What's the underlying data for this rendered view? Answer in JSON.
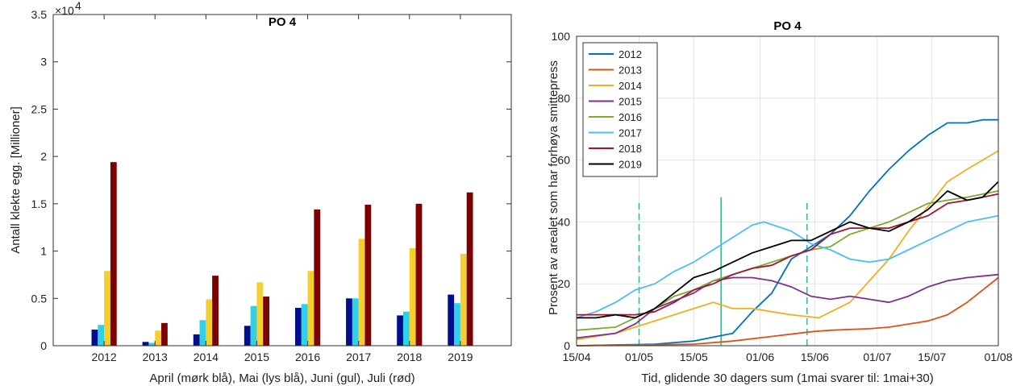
{
  "chart_data": [
    {
      "type": "bar",
      "title": "PO 4",
      "ylabel": "Antall klekte egg. [Millioner]",
      "xlabel": "April (mørk blå), Mai (lys blå), Juni (gul), Juli (rød)",
      "exponent_label": "×10",
      "exponent_power": "4",
      "ylim": [
        0,
        35000
      ],
      "yticks": [
        "0",
        "0.5",
        "1",
        "1.5",
        "2",
        "2.5",
        "3",
        "3.5"
      ],
      "categories": [
        "2012",
        "2013",
        "2014",
        "2015",
        "2016",
        "2017",
        "2018",
        "2019"
      ],
      "series": [
        {
          "color": "#000e8c",
          "values": [
            1700,
            400,
            1200,
            2100,
            4000,
            5000,
            3200,
            5400
          ]
        },
        {
          "color": "#2fd0e8",
          "values": [
            2200,
            300,
            2700,
            4200,
            4400,
            5000,
            3600,
            4500
          ]
        },
        {
          "color": "#f5cf2d",
          "values": [
            7900,
            1600,
            4900,
            6700,
            7900,
            11300,
            10300,
            9700
          ]
        },
        {
          "color": "#7d0000",
          "values": [
            19400,
            2400,
            7400,
            5200,
            14400,
            14900,
            15000,
            16200
          ]
        }
      ]
    },
    {
      "type": "line",
      "title": "PO 4",
      "ylabel": "Prosent av arealet som har forhøya smittepress",
      "xlabel": "Tid, glidende 30 dagers sum (1mai svarer til: 1mai+30)",
      "xticks": [
        "15/04",
        "01/05",
        "15/05",
        "01/06",
        "15/06",
        "01/07",
        "15/07",
        "01/08"
      ],
      "xlim": [
        0,
        108
      ],
      "yticks": [
        "0",
        "20",
        "40",
        "60",
        "80",
        "100"
      ],
      "ylim": [
        0,
        100
      ],
      "grid": true,
      "legend": "top-left",
      "vlines": [
        {
          "day": 16,
          "ymax": 47,
          "style": "dashed"
        },
        {
          "day": 37,
          "ymax": 48,
          "style": "solid"
        },
        {
          "day": 59,
          "ymax": 47,
          "style": "dashed"
        }
      ],
      "series": [
        {
          "name": "2012",
          "color": "#0072bd",
          "points": [
            [
              0,
              0
            ],
            [
              20,
              0.5
            ],
            [
              30,
              1.5
            ],
            [
              40,
              4
            ],
            [
              45,
              11
            ],
            [
              50,
              17
            ],
            [
              55,
              28
            ],
            [
              60,
              32
            ],
            [
              65,
              36
            ],
            [
              70,
              42
            ],
            [
              75,
              50
            ],
            [
              80,
              57
            ],
            [
              85,
              63
            ],
            [
              90,
              68
            ],
            [
              95,
              72
            ],
            [
              100,
              72
            ],
            [
              104,
              73
            ],
            [
              108,
              73
            ]
          ]
        },
        {
          "name": "2013",
          "color": "#d95319",
          "points": [
            [
              0,
              0
            ],
            [
              30,
              0.5
            ],
            [
              40,
              1.5
            ],
            [
              50,
              3
            ],
            [
              60,
              4.5
            ],
            [
              65,
              5
            ],
            [
              75,
              5.5
            ],
            [
              80,
              6
            ],
            [
              90,
              8
            ],
            [
              95,
              10
            ],
            [
              100,
              14
            ],
            [
              104,
              18
            ],
            [
              108,
              22
            ]
          ]
        },
        {
          "name": "2014",
          "color": "#edb120",
          "points": [
            [
              0,
              2
            ],
            [
              10,
              4
            ],
            [
              15,
              6
            ],
            [
              25,
              10
            ],
            [
              30,
              12
            ],
            [
              35,
              14
            ],
            [
              40,
              12
            ],
            [
              45,
              12
            ],
            [
              50,
              11
            ],
            [
              55,
              10
            ],
            [
              62,
              9
            ],
            [
              70,
              14
            ],
            [
              75,
              21
            ],
            [
              80,
              28
            ],
            [
              85,
              37
            ],
            [
              90,
              45
            ],
            [
              95,
              53
            ],
            [
              100,
              57
            ],
            [
              108,
              63
            ]
          ]
        },
        {
          "name": "2015",
          "color": "#7e2f8e",
          "points": [
            [
              0,
              2.5
            ],
            [
              10,
              4
            ],
            [
              15,
              7
            ],
            [
              20,
              12
            ],
            [
              30,
              17
            ],
            [
              35,
              21
            ],
            [
              40,
              22
            ],
            [
              45,
              22
            ],
            [
              50,
              21
            ],
            [
              55,
              19
            ],
            [
              60,
              16
            ],
            [
              65,
              15
            ],
            [
              70,
              16
            ],
            [
              75,
              15
            ],
            [
              80,
              14
            ],
            [
              85,
              16
            ],
            [
              90,
              19
            ],
            [
              95,
              21
            ],
            [
              100,
              22
            ],
            [
              108,
              23
            ]
          ]
        },
        {
          "name": "2016",
          "color": "#77ac30",
          "points": [
            [
              0,
              5
            ],
            [
              10,
              6
            ],
            [
              15,
              9
            ],
            [
              20,
              12
            ],
            [
              25,
              16
            ],
            [
              30,
              18
            ],
            [
              35,
              21
            ],
            [
              40,
              23
            ],
            [
              45,
              25
            ],
            [
              50,
              27
            ],
            [
              55,
              29
            ],
            [
              60,
              31
            ],
            [
              65,
              32
            ],
            [
              70,
              36
            ],
            [
              75,
              38
            ],
            [
              80,
              40
            ],
            [
              85,
              43
            ],
            [
              90,
              46
            ],
            [
              95,
              47
            ],
            [
              100,
              48
            ],
            [
              108,
              50
            ]
          ]
        },
        {
          "name": "2017",
          "color": "#4dbeee",
          "points": [
            [
              0,
              9
            ],
            [
              5,
              11
            ],
            [
              10,
              14
            ],
            [
              15,
              18
            ],
            [
              20,
              20
            ],
            [
              25,
              24
            ],
            [
              30,
              27
            ],
            [
              35,
              31
            ],
            [
              40,
              35
            ],
            [
              45,
              39
            ],
            [
              48,
              40
            ],
            [
              55,
              37
            ],
            [
              60,
              33
            ],
            [
              65,
              31
            ],
            [
              70,
              28
            ],
            [
              75,
              27
            ],
            [
              80,
              28
            ],
            [
              85,
              31
            ],
            [
              90,
              34
            ],
            [
              95,
              37
            ],
            [
              100,
              40
            ],
            [
              108,
              42
            ]
          ]
        },
        {
          "name": "2018",
          "color": "#a2142f",
          "points": [
            [
              0,
              10
            ],
            [
              10,
              10
            ],
            [
              15,
              10
            ],
            [
              20,
              11
            ],
            [
              25,
              14
            ],
            [
              30,
              18
            ],
            [
              35,
              20
            ],
            [
              40,
              23
            ],
            [
              45,
              25
            ],
            [
              50,
              26
            ],
            [
              55,
              29
            ],
            [
              60,
              31
            ],
            [
              65,
              36
            ],
            [
              70,
              38
            ],
            [
              75,
              38
            ],
            [
              80,
              38
            ],
            [
              85,
              40
            ],
            [
              90,
              42
            ],
            [
              95,
              46
            ],
            [
              100,
              47
            ],
            [
              108,
              49
            ]
          ]
        },
        {
          "name": "2019",
          "color": "#000000",
          "points": [
            [
              0,
              9
            ],
            [
              5,
              9
            ],
            [
              10,
              10
            ],
            [
              15,
              9
            ],
            [
              20,
              12
            ],
            [
              25,
              17
            ],
            [
              30,
              22
            ],
            [
              35,
              24
            ],
            [
              40,
              27
            ],
            [
              45,
              30
            ],
            [
              50,
              32
            ],
            [
              55,
              34
            ],
            [
              60,
              34
            ],
            [
              65,
              37
            ],
            [
              70,
              40
            ],
            [
              75,
              38
            ],
            [
              80,
              37
            ],
            [
              85,
              40
            ],
            [
              90,
              44
            ],
            [
              95,
              50
            ],
            [
              100,
              47
            ],
            [
              104,
              48
            ],
            [
              108,
              53
            ]
          ]
        }
      ]
    }
  ]
}
